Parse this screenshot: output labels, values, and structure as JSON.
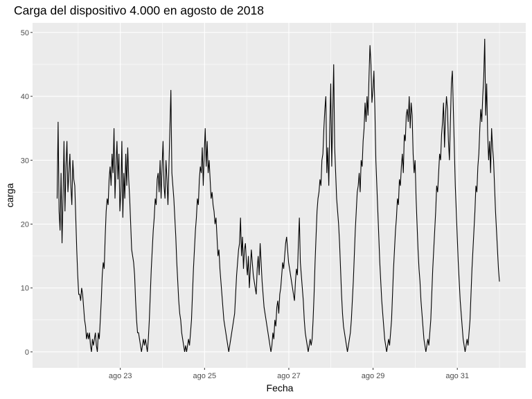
{
  "chart_data": {
    "type": "line",
    "title": "Carga del dispositivo 4.000 en agosto de 2018",
    "xlabel": "Fecha",
    "ylabel": "carga",
    "x_range_days": [
      "2018-08-21T12:00",
      "2018-09-01T00:00"
    ],
    "xlim": [
      "2018-08-20T22:00",
      "2018-09-01T15:00"
    ],
    "ylim": [
      -2.5,
      51.5
    ],
    "x_ticks": [
      {
        "date": "2018-08-23",
        "label": "ago 23"
      },
      {
        "date": "2018-08-25",
        "label": "ago 25"
      },
      {
        "date": "2018-08-27",
        "label": "ago 27"
      },
      {
        "date": "2018-08-29",
        "label": "ago 29"
      },
      {
        "date": "2018-08-31",
        "label": "ago 31"
      }
    ],
    "y_ticks": [
      0,
      10,
      20,
      30,
      40,
      50
    ],
    "grid": true,
    "background": "#EBEBEB",
    "line_color": "#000000",
    "series": [
      {
        "values": [
          24,
          36,
          22,
          19,
          28,
          17,
          24,
          33,
          22,
          29,
          33,
          25,
          28,
          31,
          26,
          23,
          30,
          27,
          26,
          21,
          16,
          12,
          9,
          9,
          8,
          10,
          9,
          7,
          5,
          4,
          2,
          3,
          2,
          3,
          1,
          0,
          2,
          1,
          2,
          3,
          1,
          0,
          3,
          2,
          5,
          8,
          12,
          14,
          13,
          18,
          22,
          24,
          23,
          27,
          29,
          26,
          31,
          28,
          35,
          24,
          29,
          33,
          27,
          31,
          22,
          25,
          33,
          21,
          28,
          24,
          31,
          26,
          32,
          27,
          24,
          20,
          16,
          15,
          14,
          12,
          8,
          5,
          3,
          3,
          2,
          1,
          0,
          1,
          2,
          1,
          2,
          1,
          0,
          2,
          5,
          9,
          13,
          16,
          19,
          21,
          24,
          23,
          27,
          28,
          25,
          30,
          24,
          29,
          33,
          26,
          24,
          30,
          27,
          23,
          29,
          35,
          41,
          28,
          26,
          24,
          21,
          18,
          14,
          11,
          8,
          6,
          5,
          3,
          2,
          1,
          0,
          1,
          0,
          1,
          2,
          1,
          3,
          5,
          9,
          13,
          16,
          19,
          21,
          24,
          23,
          27,
          29,
          28,
          32,
          26,
          31,
          35,
          29,
          33,
          28,
          30,
          27,
          24,
          25,
          23,
          22,
          20,
          21,
          18,
          15,
          16,
          13,
          11,
          9,
          7,
          5,
          4,
          3,
          2,
          1,
          0,
          1,
          2,
          3,
          4,
          5,
          6,
          9,
          12,
          14,
          16,
          17,
          21,
          15,
          18,
          13,
          16,
          17,
          14,
          12,
          15,
          10,
          13,
          16,
          14,
          12,
          11,
          10,
          9,
          13,
          15,
          12,
          17,
          14,
          11,
          9,
          7,
          6,
          5,
          4,
          3,
          2,
          1,
          0,
          1,
          3,
          2,
          5,
          4,
          7,
          8,
          6,
          9,
          10,
          12,
          14,
          13,
          15,
          17,
          18,
          16,
          14,
          13,
          12,
          11,
          10,
          9,
          8,
          11,
          13,
          12,
          17,
          21,
          14,
          12,
          10,
          8,
          5,
          3,
          2,
          1,
          0,
          1,
          2,
          1,
          2,
          5,
          9,
          14,
          18,
          22,
          24,
          25,
          27,
          26,
          30,
          31,
          35,
          38,
          40,
          28,
          32,
          26,
          35,
          42,
          29,
          37,
          45,
          32,
          28,
          24,
          22,
          20,
          17,
          13,
          9,
          6,
          4,
          3,
          2,
          1,
          0,
          1,
          2,
          3,
          5,
          8,
          11,
          15,
          19,
          22,
          25,
          26,
          28,
          25,
          30,
          29,
          33,
          35,
          39,
          36,
          40,
          37,
          43,
          48,
          45,
          39,
          41,
          44,
          38,
          30,
          26,
          22,
          18,
          14,
          11,
          8,
          6,
          4,
          2,
          1,
          0,
          1,
          2,
          1,
          3,
          5,
          9,
          13,
          16,
          19,
          21,
          24,
          23,
          27,
          26,
          29,
          31,
          28,
          34,
          33,
          37,
          38,
          36,
          40,
          35,
          39,
          37,
          31,
          28,
          30,
          24,
          20,
          16,
          13,
          11,
          8,
          6,
          4,
          2,
          1,
          0,
          1,
          2,
          1,
          3,
          5,
          9,
          13,
          16,
          19,
          22,
          26,
          25,
          28,
          31,
          30,
          34,
          36,
          39,
          32,
          37,
          40,
          38,
          33,
          30,
          36,
          42,
          44,
          38,
          32,
          26,
          22,
          18,
          14,
          11,
          8,
          6,
          4,
          2,
          1,
          0,
          1,
          2,
          1,
          3,
          5,
          9,
          13,
          16,
          19,
          22,
          26,
          25,
          29,
          31,
          35,
          38,
          36,
          40,
          43,
          49,
          37,
          42,
          34,
          30,
          33,
          28,
          35,
          32,
          30,
          26,
          22,
          19,
          16,
          13,
          11
        ]
      }
    ]
  }
}
